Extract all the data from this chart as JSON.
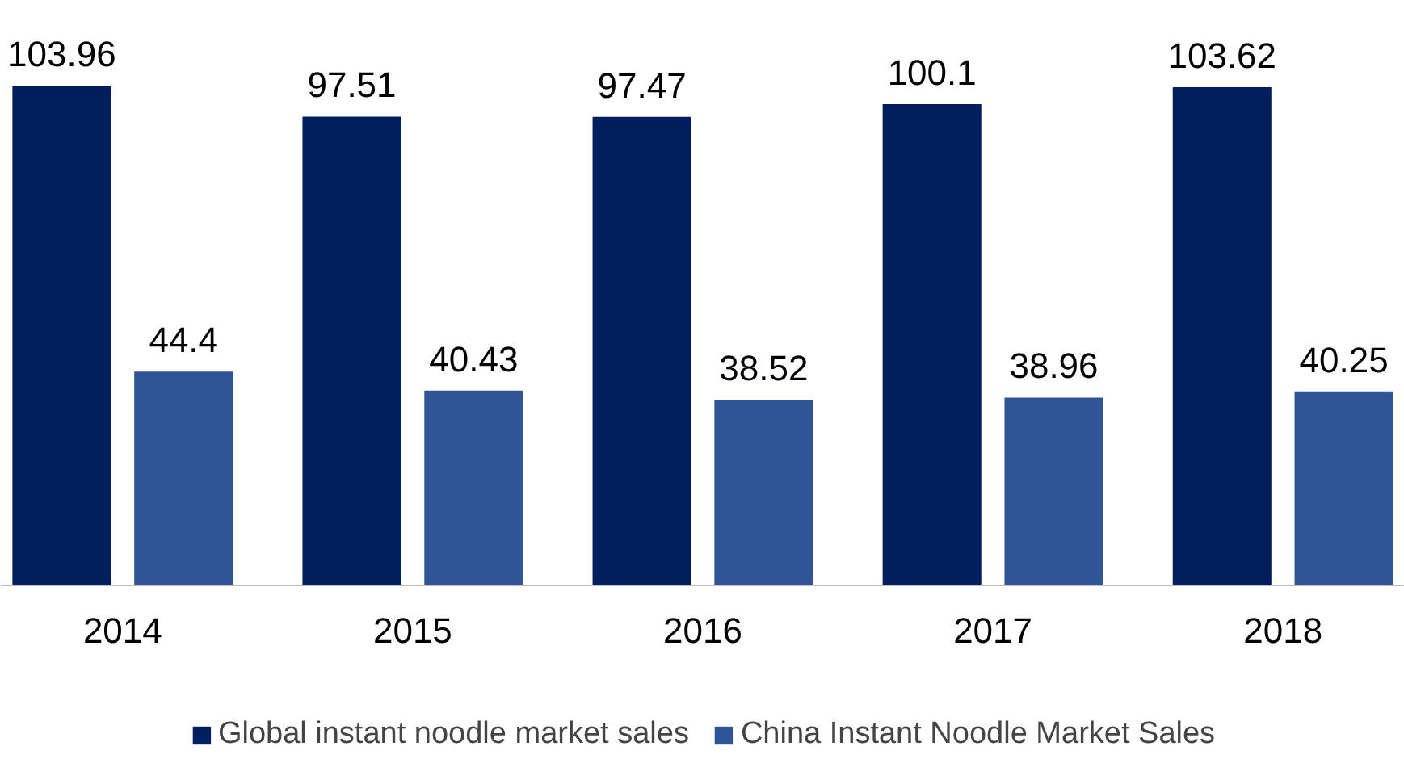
{
  "chart_data": {
    "type": "bar",
    "categories": [
      "2014",
      "2015",
      "2016",
      "2017",
      "2018"
    ],
    "series": [
      {
        "name": "Global instant noodle market sales",
        "color": "#001f5c",
        "values": [
          103.96,
          97.51,
          97.47,
          100.1,
          103.62
        ]
      },
      {
        "name": "China Instant Noodle Market Sales",
        "color": "#2f5597",
        "values": [
          44.4,
          40.43,
          38.52,
          38.96,
          40.25
        ]
      }
    ],
    "data_labels": true,
    "legend": "bottom"
  }
}
